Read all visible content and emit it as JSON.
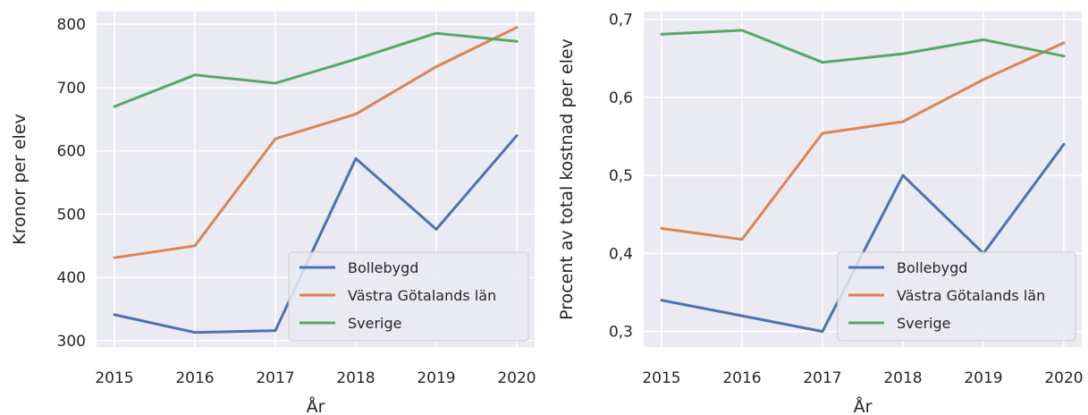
{
  "colors": {
    "background": "#eaeaf2",
    "grid": "#ffffff",
    "Bollebygd": "#4c72b0",
    "Västra Götalands län": "#dd8452",
    "Sverige": "#55a868"
  },
  "chart_data": [
    {
      "type": "line",
      "xlabel": "År",
      "ylabel": "Kronor per elev",
      "x": [
        2015,
        2016,
        2017,
        2018,
        2019,
        2020
      ],
      "x_tick_labels": [
        "2015",
        "2016",
        "2017",
        "2018",
        "2019",
        "2020"
      ],
      "ylim": [
        290,
        820
      ],
      "y_ticks": [
        300,
        400,
        500,
        600,
        700,
        800
      ],
      "y_tick_labels": [
        "300",
        "400",
        "500",
        "600",
        "700",
        "800"
      ],
      "grid": true,
      "legend_position": "lower-right",
      "series": [
        {
          "name": "Bollebygd",
          "values": [
            341,
            313,
            316,
            588,
            476,
            624
          ]
        },
        {
          "name": "Västra Götalands län",
          "values": [
            431,
            450,
            619,
            658,
            733,
            795
          ]
        },
        {
          "name": "Sverige",
          "values": [
            670,
            720,
            707,
            745,
            786,
            773
          ]
        }
      ]
    },
    {
      "type": "line",
      "xlabel": "År",
      "ylabel": "Procent av total kostnad per elev",
      "x": [
        2015,
        2016,
        2017,
        2018,
        2019,
        2020
      ],
      "x_tick_labels": [
        "2015",
        "2016",
        "2017",
        "2018",
        "2019",
        "2020"
      ],
      "ylim": [
        0.28,
        0.71
      ],
      "y_ticks": [
        0.3,
        0.4,
        0.5,
        0.6,
        0.7
      ],
      "y_tick_labels": [
        "0,3",
        "0,4",
        "0,5",
        "0,6",
        "0,7"
      ],
      "grid": true,
      "legend_position": "lower-right",
      "series": [
        {
          "name": "Bollebygd",
          "values": [
            0.34,
            0.32,
            0.3,
            0.5,
            0.4,
            0.54
          ]
        },
        {
          "name": "Västra Götalands län",
          "values": [
            0.432,
            0.418,
            0.554,
            0.569,
            0.623,
            0.67
          ]
        },
        {
          "name": "Sverige",
          "values": [
            0.681,
            0.686,
            0.645,
            0.656,
            0.674,
            0.653
          ]
        }
      ]
    }
  ]
}
